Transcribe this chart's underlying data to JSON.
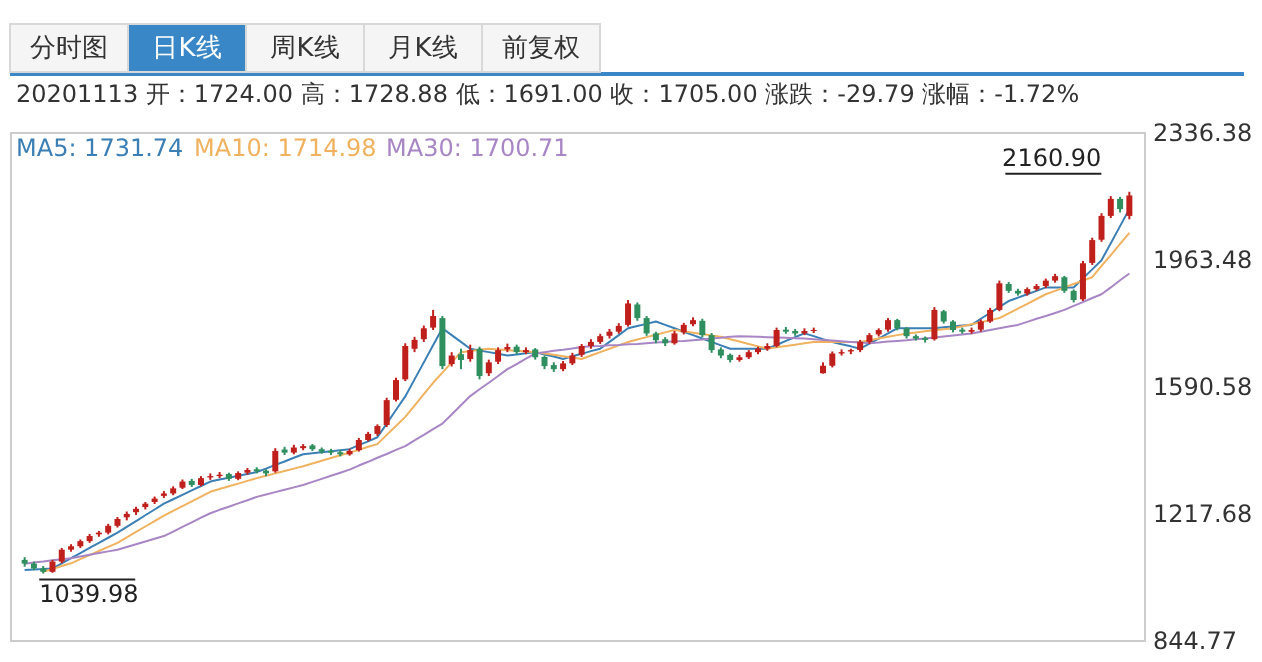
{
  "chart_data": {
    "type": "candlestick",
    "title": "20201113 开：1724.00 高：1728.88 低：1691.00 收：1705.00 涨跌：-29.79 涨幅：-1.72%",
    "categories": [
      null,
      null,
      null,
      null,
      null,
      null,
      null,
      null,
      null,
      null,
      null,
      null,
      null,
      null,
      null,
      null,
      null,
      null,
      null,
      null,
      null,
      null,
      null,
      null,
      null,
      null,
      null,
      null,
      null,
      null,
      null,
      null,
      null,
      null,
      null,
      null,
      null,
      null,
      null,
      null,
      null,
      null,
      null,
      null,
      null,
      null,
      null,
      null,
      null,
      null,
      null,
      null,
      null,
      null,
      null,
      null,
      null,
      null,
      null,
      null,
      null,
      null,
      null,
      null,
      null,
      null,
      null,
      null,
      null,
      null,
      null,
      null,
      null,
      null,
      null,
      null,
      null,
      null,
      null,
      null,
      null,
      null,
      null,
      null,
      null,
      null,
      null,
      null,
      null,
      null,
      null,
      null,
      null,
      null,
      null,
      null,
      null,
      null,
      null,
      null,
      null,
      null,
      null,
      null,
      null,
      null,
      null,
      null,
      null,
      null,
      null,
      null,
      null,
      null,
      null,
      null,
      null,
      null,
      null,
      null
    ],
    "ohlc": [
      [
        1080,
        1088,
        1060,
        1069
      ],
      [
        1069,
        1075,
        1050,
        1055
      ],
      [
        1055,
        1062,
        1039.98,
        1045
      ],
      [
        1045,
        1080,
        1042,
        1075
      ],
      [
        1075,
        1115,
        1070,
        1110
      ],
      [
        1110,
        1126,
        1104,
        1120
      ],
      [
        1120,
        1140,
        1115,
        1135
      ],
      [
        1135,
        1156,
        1130,
        1150
      ],
      [
        1155,
        1165,
        1148,
        1160
      ],
      [
        1160,
        1186,
        1155,
        1180
      ],
      [
        1180,
        1206,
        1175,
        1200
      ],
      [
        1205,
        1222,
        1196,
        1215
      ],
      [
        1220,
        1236,
        1212,
        1230
      ],
      [
        1235,
        1250,
        1228,
        1245
      ],
      [
        1250,
        1266,
        1244,
        1260
      ],
      [
        1268,
        1282,
        1262,
        1275
      ],
      [
        1275,
        1296,
        1270,
        1290
      ],
      [
        1292,
        1316,
        1288,
        1310
      ],
      [
        1312,
        1318,
        1294,
        1300
      ],
      [
        1300,
        1326,
        1296,
        1320
      ],
      [
        1322,
        1334,
        1315,
        1326
      ],
      [
        1326,
        1338,
        1320,
        1330
      ],
      [
        1332,
        1336,
        1312,
        1318
      ],
      [
        1318,
        1340,
        1314,
        1335
      ],
      [
        1336,
        1350,
        1330,
        1344
      ],
      [
        1346,
        1352,
        1334,
        1340
      ],
      [
        1342,
        1346,
        1326,
        1334
      ],
      [
        1340,
        1408,
        1336,
        1400
      ],
      [
        1404,
        1412,
        1388,
        1395
      ],
      [
        1395,
        1418,
        1390,
        1410
      ],
      [
        1408,
        1420,
        1402,
        1414
      ],
      [
        1416,
        1420,
        1400,
        1405
      ],
      [
        1405,
        1410,
        1392,
        1398
      ],
      [
        1400,
        1406,
        1388,
        1395
      ],
      [
        1396,
        1402,
        1384,
        1390
      ],
      [
        1390,
        1406,
        1386,
        1400
      ],
      [
        1402,
        1438,
        1398,
        1432
      ],
      [
        1432,
        1456,
        1428,
        1450
      ],
      [
        1450,
        1478,
        1444,
        1473
      ],
      [
        1476,
        1556,
        1470,
        1549
      ],
      [
        1550,
        1615,
        1545,
        1608
      ],
      [
        1610,
        1716,
        1605,
        1708
      ],
      [
        1700,
        1735,
        1690,
        1726
      ],
      [
        1728,
        1768,
        1720,
        1760
      ],
      [
        1762,
        1814,
        1755,
        1796
      ],
      [
        1790,
        1796,
        1640,
        1649
      ],
      [
        1655,
        1690,
        1648,
        1680
      ],
      [
        1684,
        1700,
        1640,
        1667
      ],
      [
        1670,
        1712,
        1662,
        1696
      ],
      [
        1700,
        1706,
        1610,
        1620
      ],
      [
        1628,
        1668,
        1620,
        1660
      ],
      [
        1662,
        1704,
        1655,
        1696
      ],
      [
        1698,
        1715,
        1690,
        1705
      ],
      [
        1706,
        1712,
        1684,
        1690
      ],
      [
        1690,
        1704,
        1684,
        1696
      ],
      [
        1698,
        1702,
        1668,
        1675
      ],
      [
        1676,
        1680,
        1640,
        1649
      ],
      [
        1652,
        1660,
        1632,
        1640
      ],
      [
        1640,
        1664,
        1634,
        1657
      ],
      [
        1657,
        1688,
        1652,
        1680
      ],
      [
        1682,
        1714,
        1676,
        1708
      ],
      [
        1708,
        1728,
        1700,
        1720
      ],
      [
        1720,
        1744,
        1714,
        1737
      ],
      [
        1738,
        1758,
        1730,
        1750
      ],
      [
        1750,
        1775,
        1744,
        1767
      ],
      [
        1770,
        1843,
        1765,
        1833
      ],
      [
        1830,
        1836,
        1782,
        1790
      ],
      [
        1790,
        1796,
        1738,
        1745
      ],
      [
        1745,
        1750,
        1716,
        1725
      ],
      [
        1728,
        1734,
        1708,
        1716
      ],
      [
        1716,
        1752,
        1712,
        1745
      ],
      [
        1748,
        1776,
        1742,
        1770
      ],
      [
        1772,
        1792,
        1766,
        1784
      ],
      [
        1782,
        1788,
        1734,
        1740
      ],
      [
        1740,
        1746,
        1688,
        1696
      ],
      [
        1698,
        1704,
        1672,
        1680
      ],
      [
        1682,
        1686,
        1660,
        1667
      ],
      [
        1667,
        1682,
        1662,
        1675
      ],
      [
        1675,
        1696,
        1670,
        1690
      ],
      [
        1690,
        1706,
        1684,
        1700
      ],
      [
        1700,
        1716,
        1694,
        1708
      ],
      [
        1708,
        1762,
        1704,
        1755
      ],
      [
        1756,
        1764,
        1744,
        1750
      ],
      [
        1752,
        1758,
        1738,
        1745
      ],
      [
        1745,
        1760,
        1740,
        1752
      ],
      [
        1752,
        1762,
        1746,
        1755
      ],
      [
        1628,
        1660,
        1627,
        1650
      ],
      [
        1650,
        1692,
        1645,
        1686
      ],
      [
        1686,
        1698,
        1680,
        1690
      ],
      [
        1692,
        1700,
        1684,
        1696
      ],
      [
        1696,
        1726,
        1690,
        1720
      ],
      [
        1720,
        1746,
        1714,
        1740
      ],
      [
        1742,
        1760,
        1736,
        1755
      ],
      [
        1756,
        1790,
        1750,
        1784
      ],
      [
        1784,
        1788,
        1754,
        1760
      ],
      [
        1760,
        1764,
        1730,
        1737
      ],
      [
        1737,
        1742,
        1724,
        1730
      ],
      [
        1732,
        1736,
        1718,
        1726
      ],
      [
        1728,
        1822,
        1724,
        1814
      ],
      [
        1810,
        1814,
        1774,
        1780
      ],
      [
        1780,
        1784,
        1748,
        1755
      ],
      [
        1756,
        1762,
        1744,
        1750
      ],
      [
        1750,
        1762,
        1744,
        1755
      ],
      [
        1756,
        1786,
        1750,
        1780
      ],
      [
        1780,
        1820,
        1776,
        1814
      ],
      [
        1814,
        1900,
        1810,
        1892
      ],
      [
        1890,
        1896,
        1864,
        1870
      ],
      [
        1870,
        1876,
        1856,
        1862
      ],
      [
        1862,
        1880,
        1856,
        1875
      ],
      [
        1875,
        1890,
        1870,
        1884
      ],
      [
        1884,
        1906,
        1878,
        1900
      ],
      [
        1900,
        1920,
        1894,
        1913
      ],
      [
        1910,
        1914,
        1864,
        1870
      ],
      [
        1870,
        1874,
        1836,
        1843
      ],
      [
        1845,
        1958,
        1840,
        1951
      ],
      [
        1952,
        2026,
        1946,
        2019
      ],
      [
        2020,
        2098,
        2014,
        2090
      ],
      [
        2090,
        2148,
        2084,
        2140
      ],
      [
        2140,
        2146,
        2100,
        2110
      ],
      [
        2090,
        2160.9,
        2080,
        2150
      ]
    ],
    "colors": [
      "#2f8f5f",
      "#2f8f5f",
      "#2f8f5f",
      "#c0201c",
      "#c0201c",
      "#c0201c",
      "#c0201c",
      "#c0201c",
      "#c0201c",
      "#c0201c",
      "#c0201c",
      "#c0201c",
      "#c0201c",
      "#c0201c",
      "#c0201c",
      "#c0201c",
      "#c0201c",
      "#c0201c",
      "#2f8f5f",
      "#c0201c",
      "#c0201c",
      "#c0201c",
      "#2f8f5f",
      "#c0201c",
      "#c0201c",
      "#2f8f5f",
      "#2f8f5f",
      "#c0201c",
      "#2f8f5f",
      "#c0201c",
      "#c0201c",
      "#2f8f5f",
      "#2f8f5f",
      "#2f8f5f",
      "#2f8f5f",
      "#c0201c",
      "#c0201c",
      "#c0201c",
      "#c0201c",
      "#c0201c",
      "#c0201c",
      "#c0201c",
      "#c0201c",
      "#c0201c",
      "#c0201c",
      "#2f8f5f",
      "#c0201c",
      "#2f8f5f",
      "#c0201c",
      "#2f8f5f",
      "#c0201c",
      "#c0201c",
      "#c0201c",
      "#2f8f5f",
      "#c0201c",
      "#2f8f5f",
      "#2f8f5f",
      "#2f8f5f",
      "#c0201c",
      "#c0201c",
      "#c0201c",
      "#c0201c",
      "#c0201c",
      "#c0201c",
      "#c0201c",
      "#c0201c",
      "#2f8f5f",
      "#2f8f5f",
      "#2f8f5f",
      "#2f8f5f",
      "#c0201c",
      "#c0201c",
      "#c0201c",
      "#2f8f5f",
      "#2f8f5f",
      "#2f8f5f",
      "#2f8f5f",
      "#c0201c",
      "#c0201c",
      "#c0201c",
      "#c0201c",
      "#c0201c",
      "#2f8f5f",
      "#2f8f5f",
      "#c0201c",
      "#c0201c",
      "#c0201c",
      "#c0201c",
      "#c0201c",
      "#c0201c",
      "#c0201c",
      "#c0201c",
      "#c0201c",
      "#c0201c",
      "#2f8f5f",
      "#2f8f5f",
      "#2f8f5f",
      "#2f8f5f",
      "#c0201c",
      "#2f8f5f",
      "#2f8f5f",
      "#2f8f5f",
      "#c0201c",
      "#c0201c",
      "#c0201c",
      "#c0201c",
      "#2f8f5f",
      "#2f8f5f",
      "#c0201c",
      "#c0201c",
      "#c0201c",
      "#c0201c",
      "#2f8f5f",
      "#2f8f5f",
      "#c0201c",
      "#c0201c",
      "#c0201c",
      "#c0201c",
      "#2f8f5f",
      "#c0201c"
    ],
    "series": [
      {
        "name": "MA5: 1731.74",
        "type": "line",
        "color": "#3b7fb5",
        "values": [
          1050,
          1052,
          1053,
          1055,
          1070,
          1085,
          1100,
          1115,
          1130,
          1145,
          1160,
          1177,
          1194,
          1211,
          1228,
          1245,
          1258,
          1271,
          1284,
          1297,
          1310,
          1316,
          1321,
          1327,
          1332,
          1338,
          1348,
          1359,
          1369,
          1380,
          1390,
          1393,
          1396,
          1399,
          1402,
          1405,
          1417,
          1428,
          1440,
          1480,
          1520,
          1560,
          1610,
          1660,
          1710,
          1760,
          1740,
          1720,
          1700,
          1695,
          1690,
          1685,
          1680,
          1683,
          1687,
          1690,
          1683,
          1677,
          1670,
          1678,
          1685,
          1693,
          1700,
          1720,
          1740,
          1760,
          1767,
          1773,
          1780,
          1770,
          1760,
          1750,
          1740,
          1730,
          1720,
          1710,
          1700,
          1700,
          1700,
          1700,
          1700,
          1711,
          1723,
          1734,
          1745,
          1737,
          1728,
          1720,
          1713,
          1707,
          1700,
          1715,
          1730,
          1745,
          1760,
          1760,
          1760,
          1760,
          1760,
          1763,
          1765,
          1768,
          1770,
          1788,
          1805,
          1823,
          1840,
          1850,
          1860,
          1870,
          1880,
          1880,
          1880,
          1880,
          1907,
          1933,
          1960,
          2010,
          2060,
          2110
        ]
      },
      {
        "name": "MA10: 1714.98",
        "type": "line",
        "color": "#f0b25e",
        "values": [
          null,
          null,
          1045,
          1053,
          1062,
          1070,
          1082,
          1094,
          1106,
          1118,
          1130,
          1146,
          1162,
          1178,
          1194,
          1210,
          1224,
          1238,
          1252,
          1266,
          1280,
          1288,
          1296,
          1304,
          1312,
          1320,
          1327,
          1334,
          1341,
          1348,
          1355,
          1363,
          1371,
          1379,
          1387,
          1395,
          1403,
          1412,
          1420,
          1447,
          1473,
          1500,
          1533,
          1567,
          1600,
          1630,
          1660,
          1690,
          1693,
          1697,
          1700,
          1698,
          1696,
          1694,
          1692,
          1690,
          1686,
          1682,
          1678,
          1674,
          1670,
          1680,
          1690,
          1700,
          1710,
          1720,
          1727,
          1734,
          1741,
          1748,
          1755,
          1751,
          1747,
          1743,
          1739,
          1735,
          1728,
          1721,
          1714,
          1707,
          1700,
          1704,
          1708,
          1712,
          1716,
          1720,
          1720,
          1720,
          1720,
          1720,
          1720,
          1725,
          1730,
          1735,
          1740,
          1745,
          1748,
          1751,
          1754,
          1757,
          1760,
          1766,
          1772,
          1778,
          1784,
          1790,
          1804,
          1818,
          1832,
          1846,
          1860,
          1870,
          1880,
          1890,
          1900,
          1910,
          1943,
          1975,
          2008,
          2040
        ]
      },
      {
        "name": "MA30: 1700.71",
        "type": "line",
        "color": "#a886c5",
        "values": [
          1069,
          1072,
          1075,
          1079,
          1082,
          1085,
          1090,
          1095,
          1100,
          1105,
          1110,
          1118,
          1126,
          1134,
          1142,
          1150,
          1163,
          1177,
          1190,
          1204,
          1217,
          1227,
          1236,
          1246,
          1255,
          1265,
          1272,
          1279,
          1286,
          1293,
          1300,
          1309,
          1318,
          1327,
          1336,
          1345,
          1357,
          1368,
          1380,
          1391,
          1403,
          1414,
          1431,
          1447,
          1464,
          1480,
          1507,
          1534,
          1561,
          1581,
          1600,
          1620,
          1640,
          1655,
          1671,
          1686,
          1690,
          1694,
          1697,
          1701,
          1705,
          1707,
          1708,
          1710,
          1711,
          1713,
          1714,
          1716,
          1718,
          1720,
          1722,
          1723,
          1725,
          1727,
          1730,
          1732,
          1735,
          1737,
          1736,
          1735,
          1734,
          1733,
          1732,
          1731,
          1730,
          1728,
          1726,
          1724,
          1722,
          1720,
          1718,
          1716,
          1718,
          1721,
          1723,
          1725,
          1728,
          1730,
          1733,
          1736,
          1739,
          1742,
          1745,
          1750,
          1755,
          1760,
          1765,
          1770,
          1779,
          1788,
          1796,
          1805,
          1814,
          1826,
          1837,
          1849,
          1860,
          1880,
          1901,
          1921
        ]
      }
    ],
    "ylim": [
      844.77,
      2336.38
    ],
    "yticks": [
      844.77,
      1217.68,
      1590.58,
      1963.48,
      2336.38
    ],
    "tick_labels": "y",
    "annotations": [
      "分时图",
      "日K线",
      "周K线",
      "月K线",
      "前复权",
      "2160.90",
      "1039.98"
    ]
  }
}
